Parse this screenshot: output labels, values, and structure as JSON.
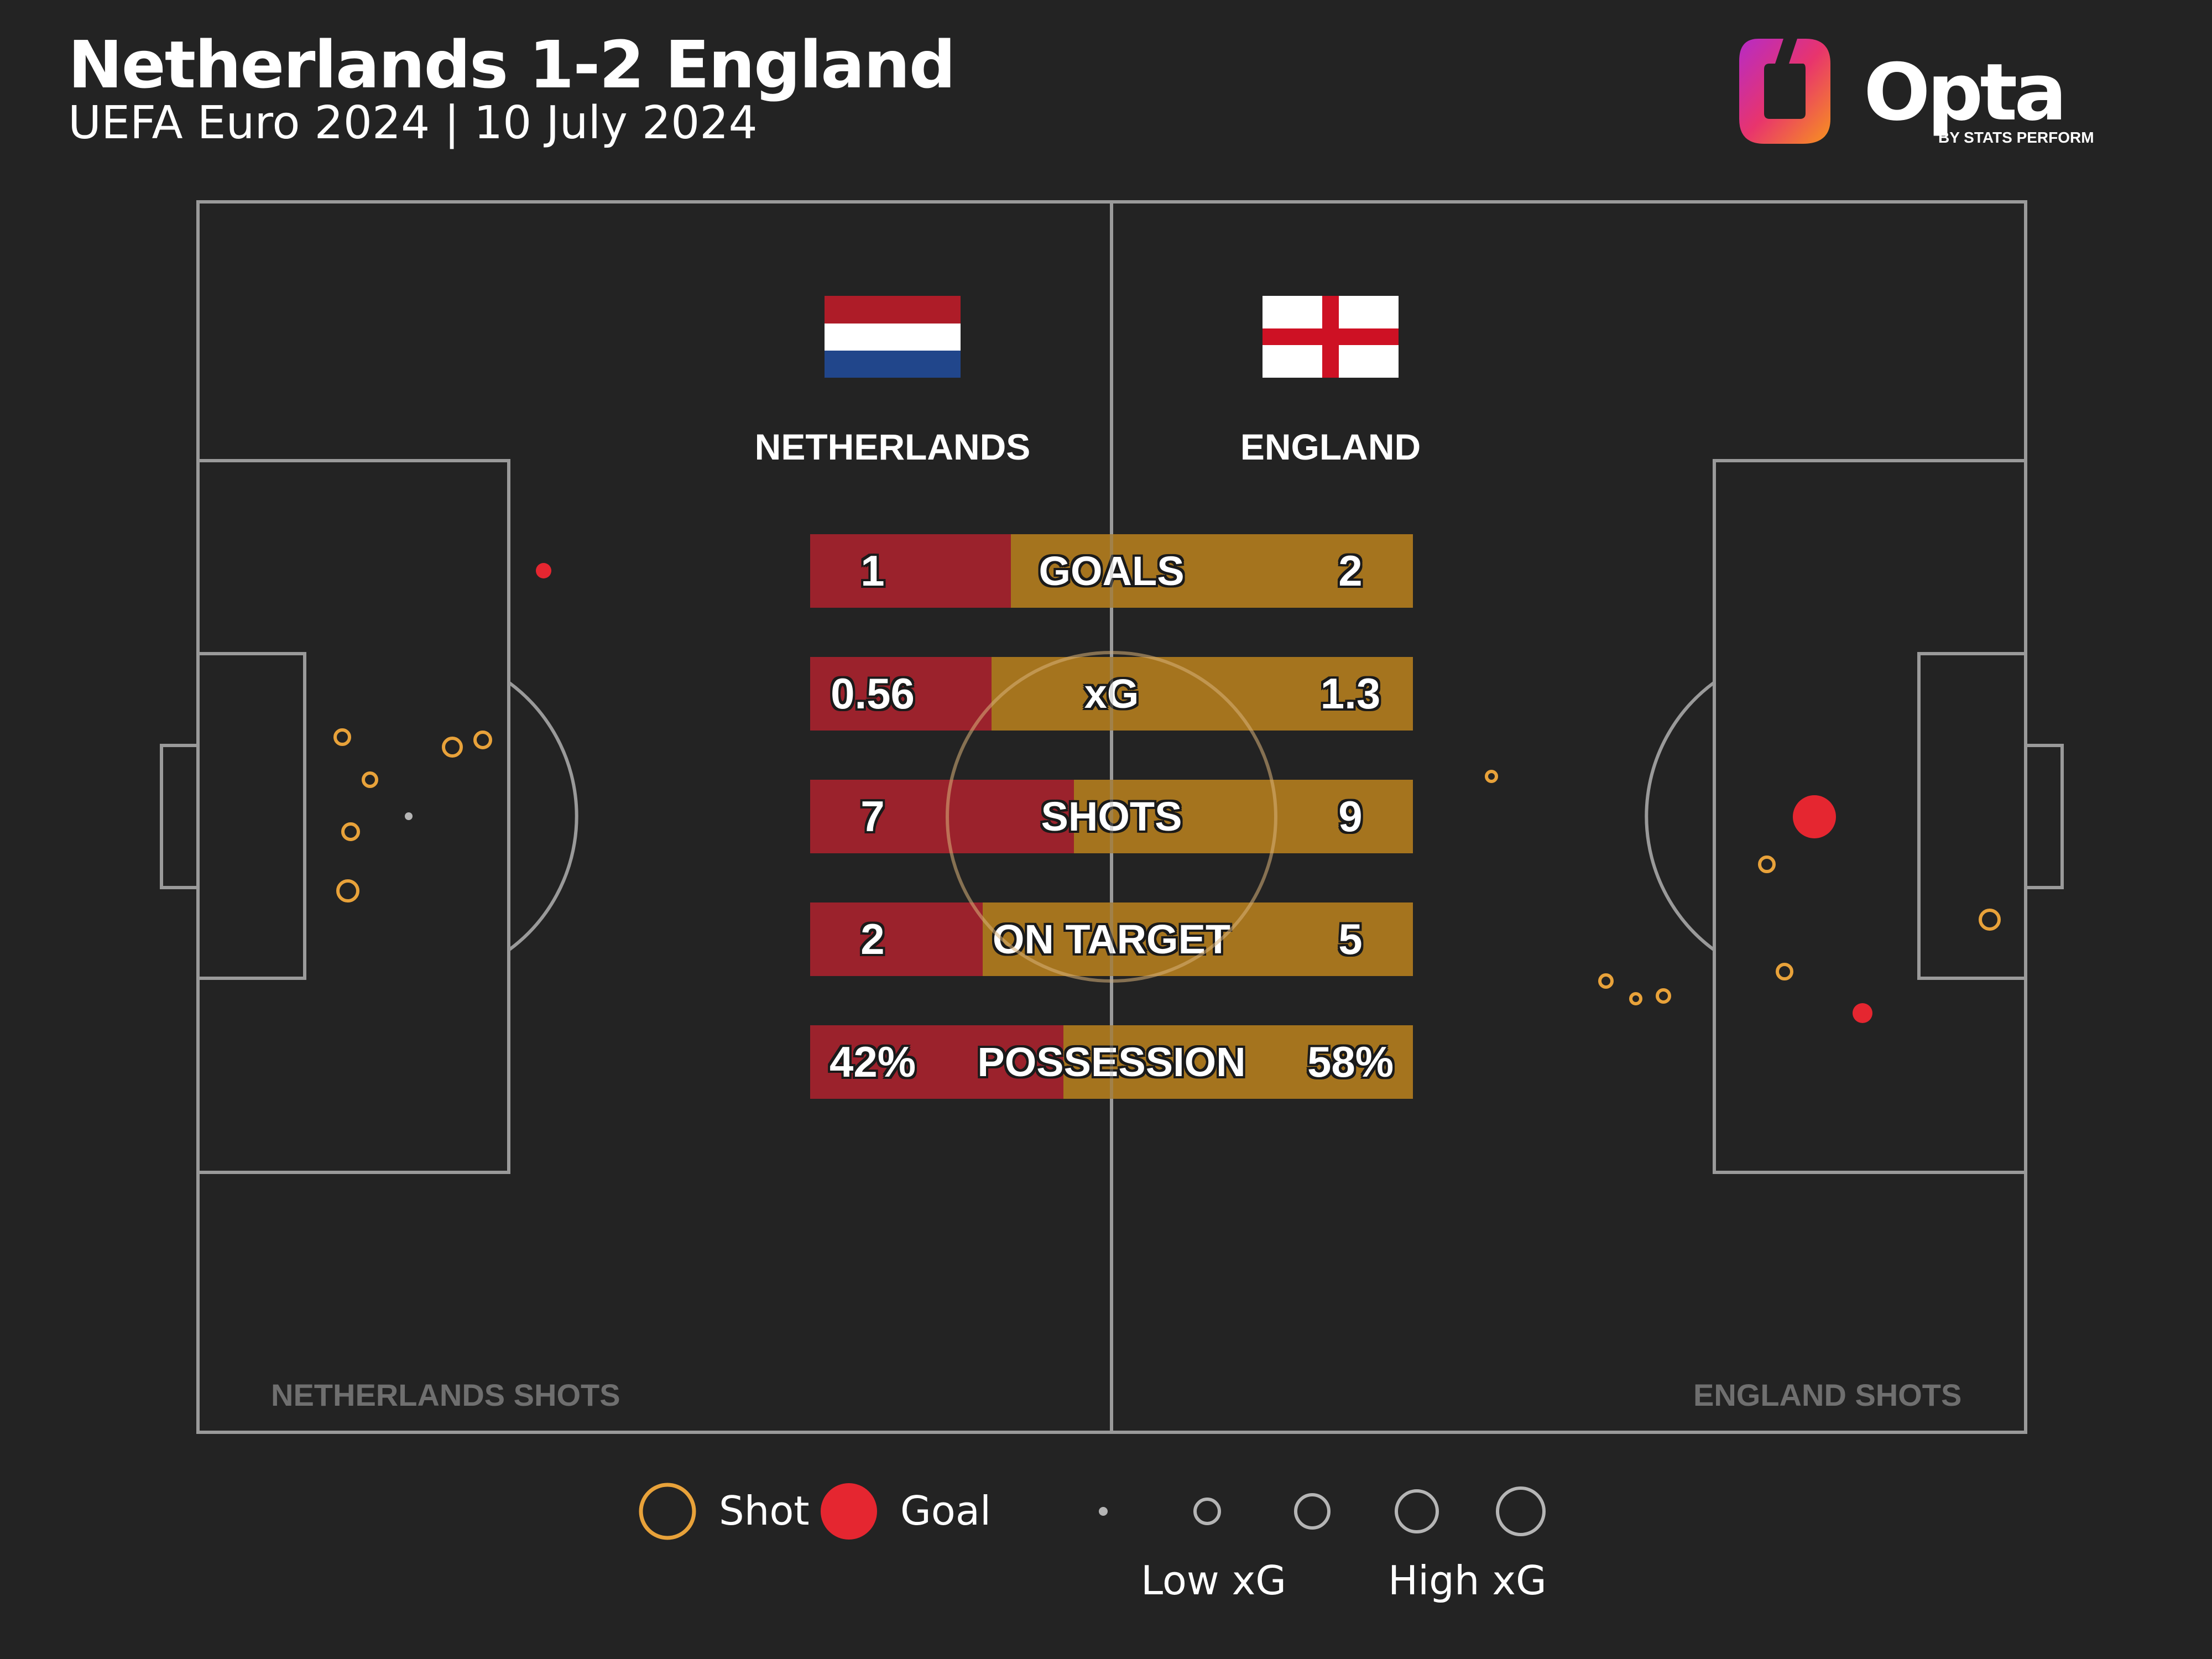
{
  "header": {
    "title": "Netherlands 1-2 England",
    "subtitle": "UEFA Euro 2024 | 10 July 2024"
  },
  "logo": {
    "name": "Opta",
    "byline": "BY STATS PERFORM"
  },
  "teams": {
    "home": {
      "name": "NETHERLANDS",
      "flag": "netherlands-flag",
      "color": "#9b222c"
    },
    "away": {
      "name": "ENGLAND",
      "flag": "england-flag",
      "color": "#a5741e"
    }
  },
  "stats": [
    {
      "label": "GOALS",
      "home": "1",
      "away": "2",
      "home_share": 0.333
    },
    {
      "label": "xG",
      "home": "0.56",
      "away": "1.3",
      "home_share": 0.301
    },
    {
      "label": "SHOTS",
      "home": "7",
      "away": "9",
      "home_share": 0.438
    },
    {
      "label": "ON TARGET",
      "home": "2",
      "away": "5",
      "home_share": 0.286
    },
    {
      "label": "POSSESSION",
      "home": "42%",
      "away": "58%",
      "home_share": 0.42
    }
  ],
  "shot_maps": {
    "home_label": "NETHERLANDS SHOTS",
    "away_label": "ENGLAND SHOTS"
  },
  "legend": {
    "shot_label": "Shot",
    "goal_label": "Goal",
    "low_xg_label": "Low xG",
    "high_xg_label": "High xG",
    "shot_color": "#e8a23a",
    "goal_color": "#e52630"
  }
}
